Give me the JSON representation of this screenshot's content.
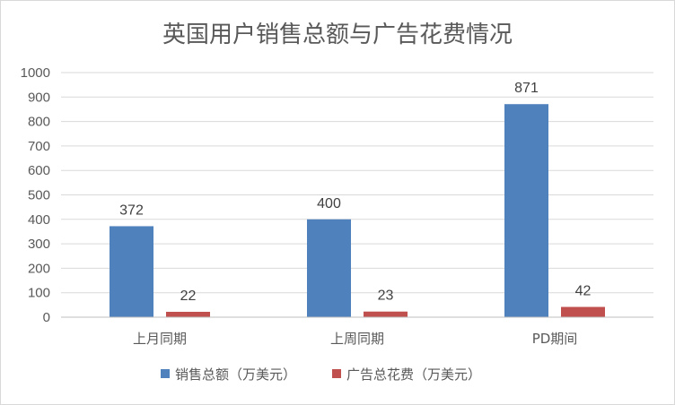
{
  "colors": {
    "series_sales": "#4f81bd",
    "series_ad": "#c0504d",
    "gridline": "#d9d9d9",
    "axis": "#bfbfbf",
    "text": "#595959",
    "label": "#404040"
  },
  "chart_data": {
    "type": "bar",
    "title": "英国用户销售总额与广告花费情况",
    "xlabel": "",
    "ylabel": "",
    "categories": [
      "上月同期",
      "上周同期",
      "PD期间"
    ],
    "series": [
      {
        "name": "销售总额（万美元）",
        "values": [
          372,
          400,
          871
        ]
      },
      {
        "name": "广告总花费（万美元）",
        "values": [
          22,
          23,
          42
        ]
      }
    ],
    "ylim": [
      0,
      1000
    ],
    "yticks": [
      0,
      100,
      200,
      300,
      400,
      500,
      600,
      700,
      800,
      900,
      1000
    ],
    "grid": true,
    "legend": "bottom",
    "data_labels": true
  }
}
